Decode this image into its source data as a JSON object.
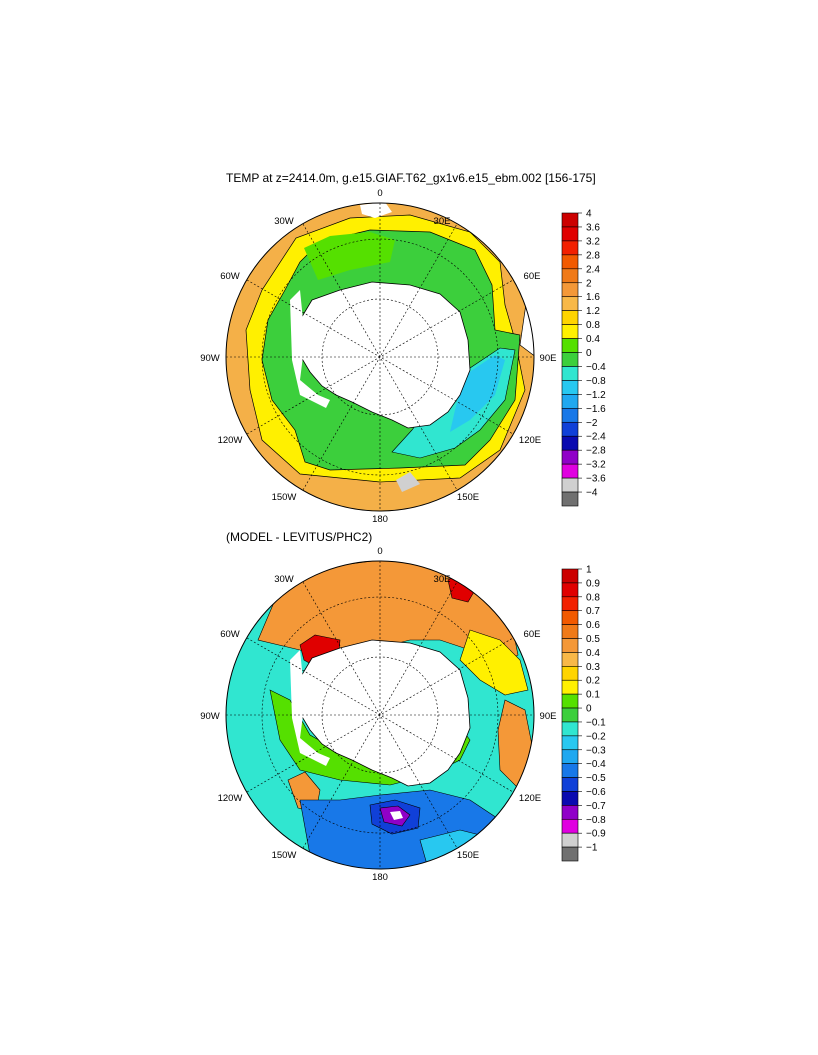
{
  "panels": [
    {
      "id": "temp",
      "title": "TEMP at z=2414.0m, g.e15.GIAF.T62_gx1v6.e15_ebm.002 [156-175]",
      "lon_labels": [
        "0",
        "30E",
        "60E",
        "90E",
        "120E",
        "150E",
        "180",
        "150W",
        "120W",
        "90W",
        "60W",
        "30W"
      ],
      "colorbar": {
        "ticks": [
          "4",
          "3.6",
          "3.2",
          "2.8",
          "2.4",
          "2",
          "1.6",
          "1.2",
          "0.8",
          "0.4",
          "0",
          "−0.4",
          "−0.8",
          "−1.2",
          "−1.6",
          "−2",
          "−2.4",
          "−2.8",
          "−3.2",
          "−3.6",
          "−4"
        ],
        "colors": [
          "#cc0000",
          "#e00000",
          "#f22000",
          "#f25a00",
          "#f07a18",
          "#f49838",
          "#f8b848",
          "#ffd400",
          "#fff000",
          "#55e000",
          "#3ccf3c",
          "#30e6d0",
          "#28c8f0",
          "#20a8f0",
          "#1878e8",
          "#1040d8",
          "#0a0ab0",
          "#9000c8",
          "#e000e0",
          "#d0d0d0",
          "#707070"
        ]
      }
    },
    {
      "id": "diff",
      "title": "(MODEL - LEVITUS/PHC2)",
      "lon_labels": [
        "0",
        "30E",
        "60E",
        "90E",
        "120E",
        "150E",
        "180",
        "150W",
        "120W",
        "90W",
        "60W",
        "30W"
      ],
      "colorbar": {
        "ticks": [
          "1",
          "0.9",
          "0.8",
          "0.7",
          "0.6",
          "0.5",
          "0.4",
          "0.3",
          "0.2",
          "0.1",
          "0",
          "−0.1",
          "−0.2",
          "−0.3",
          "−0.4",
          "−0.5",
          "−0.6",
          "−0.7",
          "−0.8",
          "−0.9",
          "−1"
        ],
        "colors": [
          "#cc0000",
          "#e00000",
          "#f22000",
          "#f25a00",
          "#f07a18",
          "#f49838",
          "#f8b848",
          "#ffd400",
          "#fff000",
          "#55e000",
          "#3ccf3c",
          "#30e6d0",
          "#28c8f0",
          "#20a8f0",
          "#1878e8",
          "#1040d8",
          "#0a0ab0",
          "#9000c8",
          "#e000e0",
          "#d0d0d0",
          "#707070"
        ]
      }
    }
  ]
}
